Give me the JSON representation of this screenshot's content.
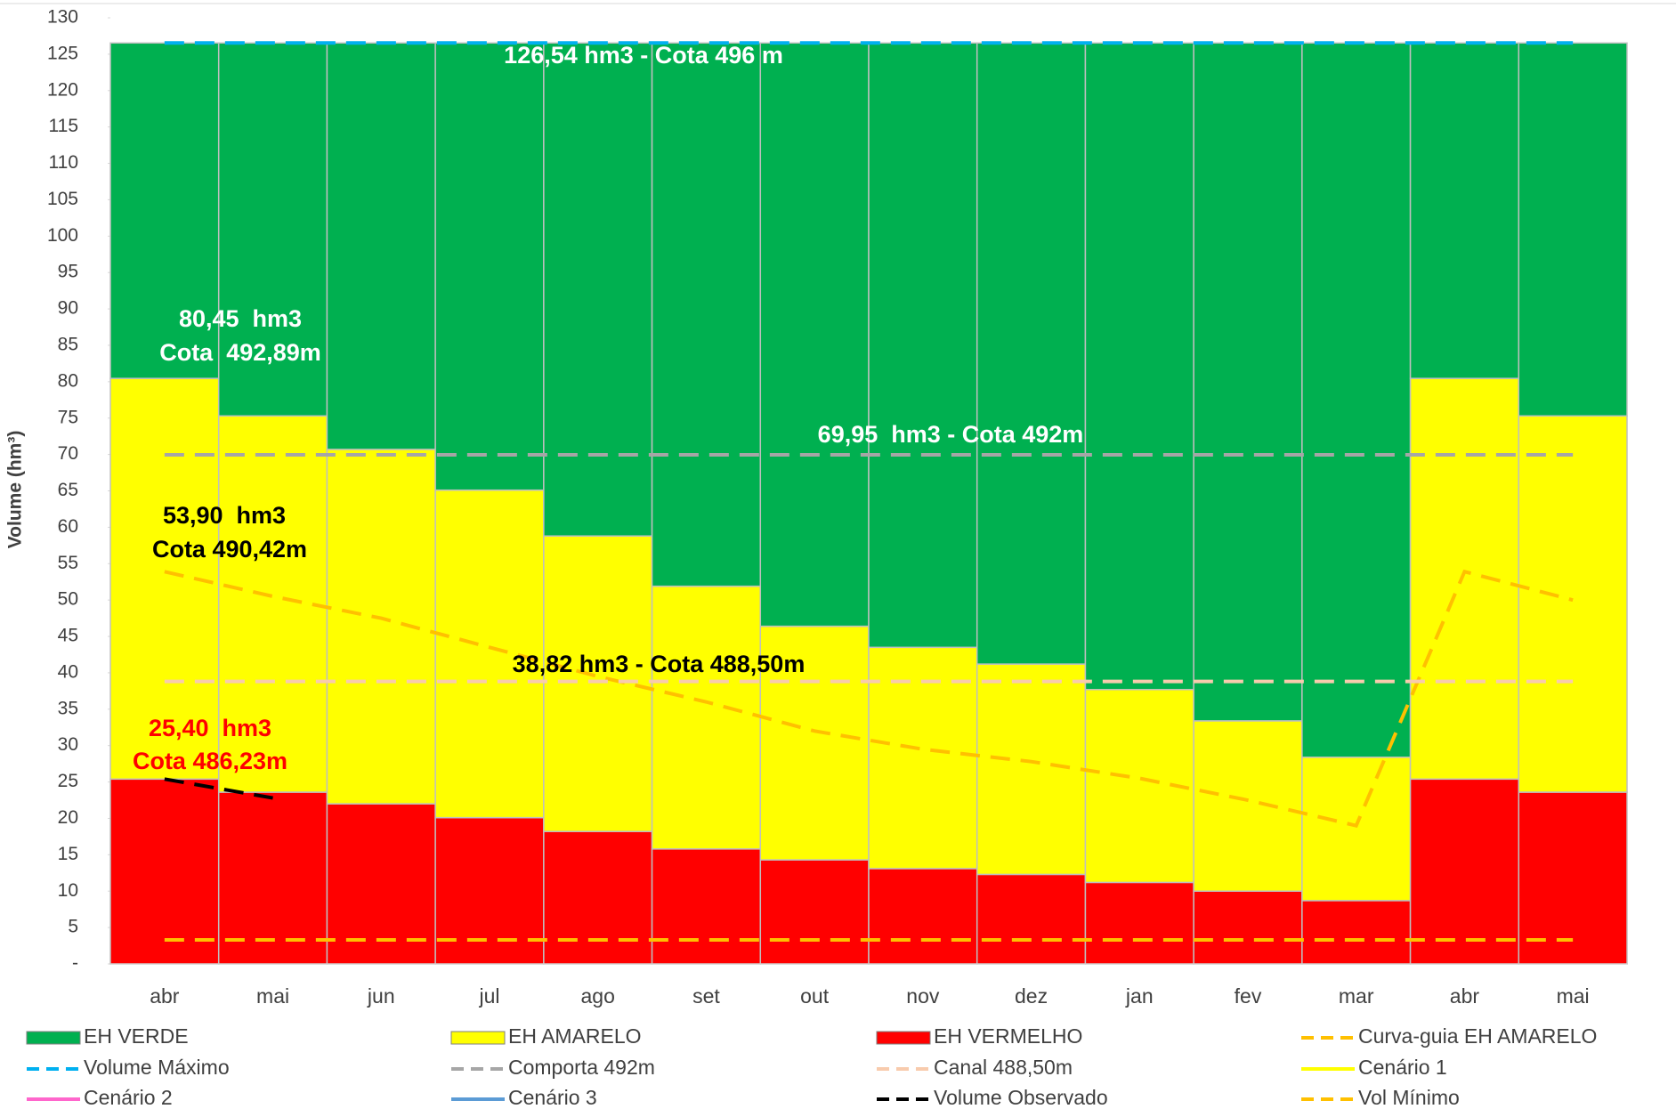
{
  "chart_data": {
    "type": "bar",
    "y_label": "Volume (hm³)",
    "categories": [
      "abr",
      "mai",
      "jun",
      "jul",
      "ago",
      "set",
      "out",
      "nov",
      "dez",
      "jan",
      "fev",
      "mar",
      "abr",
      "mai"
    ],
    "ylim": [
      0,
      130
    ],
    "yticks": [
      {
        "value": 0,
        "label": "-"
      },
      5,
      10,
      15,
      20,
      25,
      30,
      35,
      40,
      45,
      50,
      55,
      60,
      65,
      70,
      75,
      80,
      85,
      90,
      95,
      100,
      105,
      110,
      115,
      120,
      125,
      130
    ],
    "series": [
      {
        "name": "EH VERDE",
        "kind": "bar",
        "color": "#00b050",
        "values": [
          46.09,
          51.24,
          55.84,
          61.44,
          67.74,
          74.64,
          80.14,
          83.04,
          85.34,
          88.84,
          93.14,
          98.14,
          46.09,
          51.24
        ]
      },
      {
        "name": "EH AMARELO",
        "kind": "bar",
        "color": "#ffff00",
        "values": [
          55.05,
          51.7,
          48.7,
          45.0,
          40.6,
          36.1,
          32.1,
          30.4,
          28.9,
          26.5,
          23.4,
          19.7,
          55.05,
          51.7
        ]
      },
      {
        "name": "EH VERMELHO",
        "kind": "bar",
        "color": "#ff0000",
        "values": [
          25.4,
          23.6,
          22.0,
          20.1,
          18.2,
          15.8,
          14.3,
          13.1,
          12.3,
          11.2,
          10.0,
          8.7,
          25.4,
          23.6
        ]
      },
      {
        "name": "Curva-guia EH AMARELO",
        "kind": "line",
        "dash": true,
        "color": "#ffc000",
        "values": [
          53.9,
          50.5,
          47.5,
          43.5,
          39.5,
          36.0,
          32.0,
          29.5,
          27.8,
          25.5,
          22.5,
          19.0,
          53.9,
          50.0
        ]
      },
      {
        "name": "Volume Máximo",
        "kind": "line",
        "dash": true,
        "color": "#00b0f0",
        "values": [
          126.54,
          126.54,
          126.54,
          126.54,
          126.54,
          126.54,
          126.54,
          126.54,
          126.54,
          126.54,
          126.54,
          126.54,
          126.54,
          126.54
        ]
      },
      {
        "name": "Comporta 492m",
        "kind": "line",
        "dash": true,
        "color": "#a6a6a6",
        "values": [
          69.95,
          69.95,
          69.95,
          69.95,
          69.95,
          69.95,
          69.95,
          69.95,
          69.95,
          69.95,
          69.95,
          69.95,
          69.95,
          69.95
        ]
      },
      {
        "name": "Canal 488,50m",
        "kind": "line",
        "dash": true,
        "color": "#f8cbad",
        "values": [
          38.82,
          38.82,
          38.82,
          38.82,
          38.82,
          38.82,
          38.82,
          38.82,
          38.82,
          38.82,
          38.82,
          38.82,
          38.82,
          38.82
        ]
      },
      {
        "name": "Cenário 1",
        "kind": "line",
        "dash": false,
        "color": "#ffff00",
        "values": [
          null,
          null,
          null,
          null,
          null,
          null,
          null,
          null,
          null,
          null,
          null,
          null,
          null,
          null
        ]
      },
      {
        "name": "Cenário 2",
        "kind": "line",
        "dash": false,
        "color": "#ff66cc",
        "values": [
          null,
          null,
          null,
          null,
          null,
          null,
          null,
          null,
          null,
          null,
          null,
          null,
          null,
          null
        ]
      },
      {
        "name": "Cenário 3",
        "kind": "line",
        "dash": false,
        "color": "#5b9bd5",
        "values": [
          null,
          null,
          null,
          null,
          null,
          null,
          null,
          null,
          null,
          null,
          null,
          null,
          null,
          null
        ]
      },
      {
        "name": "Volume Observado",
        "kind": "line",
        "dash": true,
        "color": "#000000",
        "values": [
          25.4,
          22.8,
          null,
          null,
          null,
          null,
          null,
          null,
          null,
          null,
          null,
          null,
          null,
          null
        ]
      },
      {
        "name": "Vol Mínimo",
        "kind": "line",
        "dash": true,
        "color": "#ffc000",
        "values": [
          3.3,
          3.3,
          3.3,
          3.3,
          3.3,
          3.3,
          3.3,
          3.3,
          3.3,
          3.3,
          3.3,
          3.3,
          3.3,
          3.3
        ]
      }
    ],
    "annotations": [
      {
        "text": "126,54 hm3 - Cota 496 m",
        "color": "#ffffff"
      },
      {
        "text": "80,45  hm3",
        "color": "#ffffff"
      },
      {
        "text": "Cota  492,89m",
        "color": "#ffffff"
      },
      {
        "text": "69,95  hm3 - Cota 492m",
        "color": "#ffffff"
      },
      {
        "text": "53,90  hm3",
        "color": "#000000"
      },
      {
        "text": "Cota 490,42m",
        "color": "#000000"
      },
      {
        "text": "38,82 hm3 - Cota 488,50m",
        "color": "#000000"
      },
      {
        "text": "25,40  hm3",
        "color": "#ff0000"
      },
      {
        "text": "Cota 486,23m",
        "color": "#ff0000"
      }
    ]
  }
}
